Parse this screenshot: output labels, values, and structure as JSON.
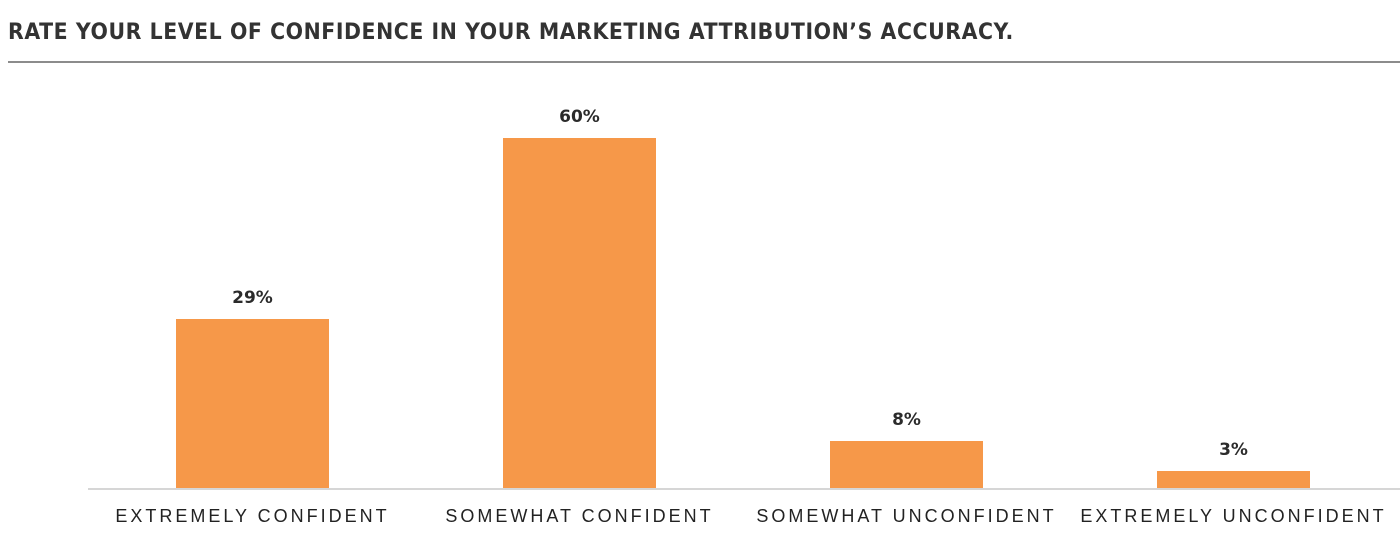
{
  "chart_data": {
    "type": "bar",
    "title": "RATE YOUR LEVEL OF CONFIDENCE IN YOUR MARKETING ATTRIBUTION’S ACCURACY.",
    "categories": [
      "EXTREMELY CONFIDENT",
      "SOMEWHAT CONFIDENT",
      "SOMEWHAT UNCONFIDENT",
      "EXTREMELY UNCONFIDENT"
    ],
    "values": [
      29,
      60,
      8,
      3
    ],
    "value_labels": [
      "29%",
      "60%",
      "8%",
      "3%"
    ],
    "xlabel": "",
    "ylabel": "",
    "ylim": [
      0,
      60
    ],
    "grid": false,
    "legend": null,
    "unit": "%",
    "colors": {
      "bar": "#f69849",
      "axis": "#d6d6d6",
      "title": "#333333",
      "rule": "#8c8c8c"
    }
  }
}
